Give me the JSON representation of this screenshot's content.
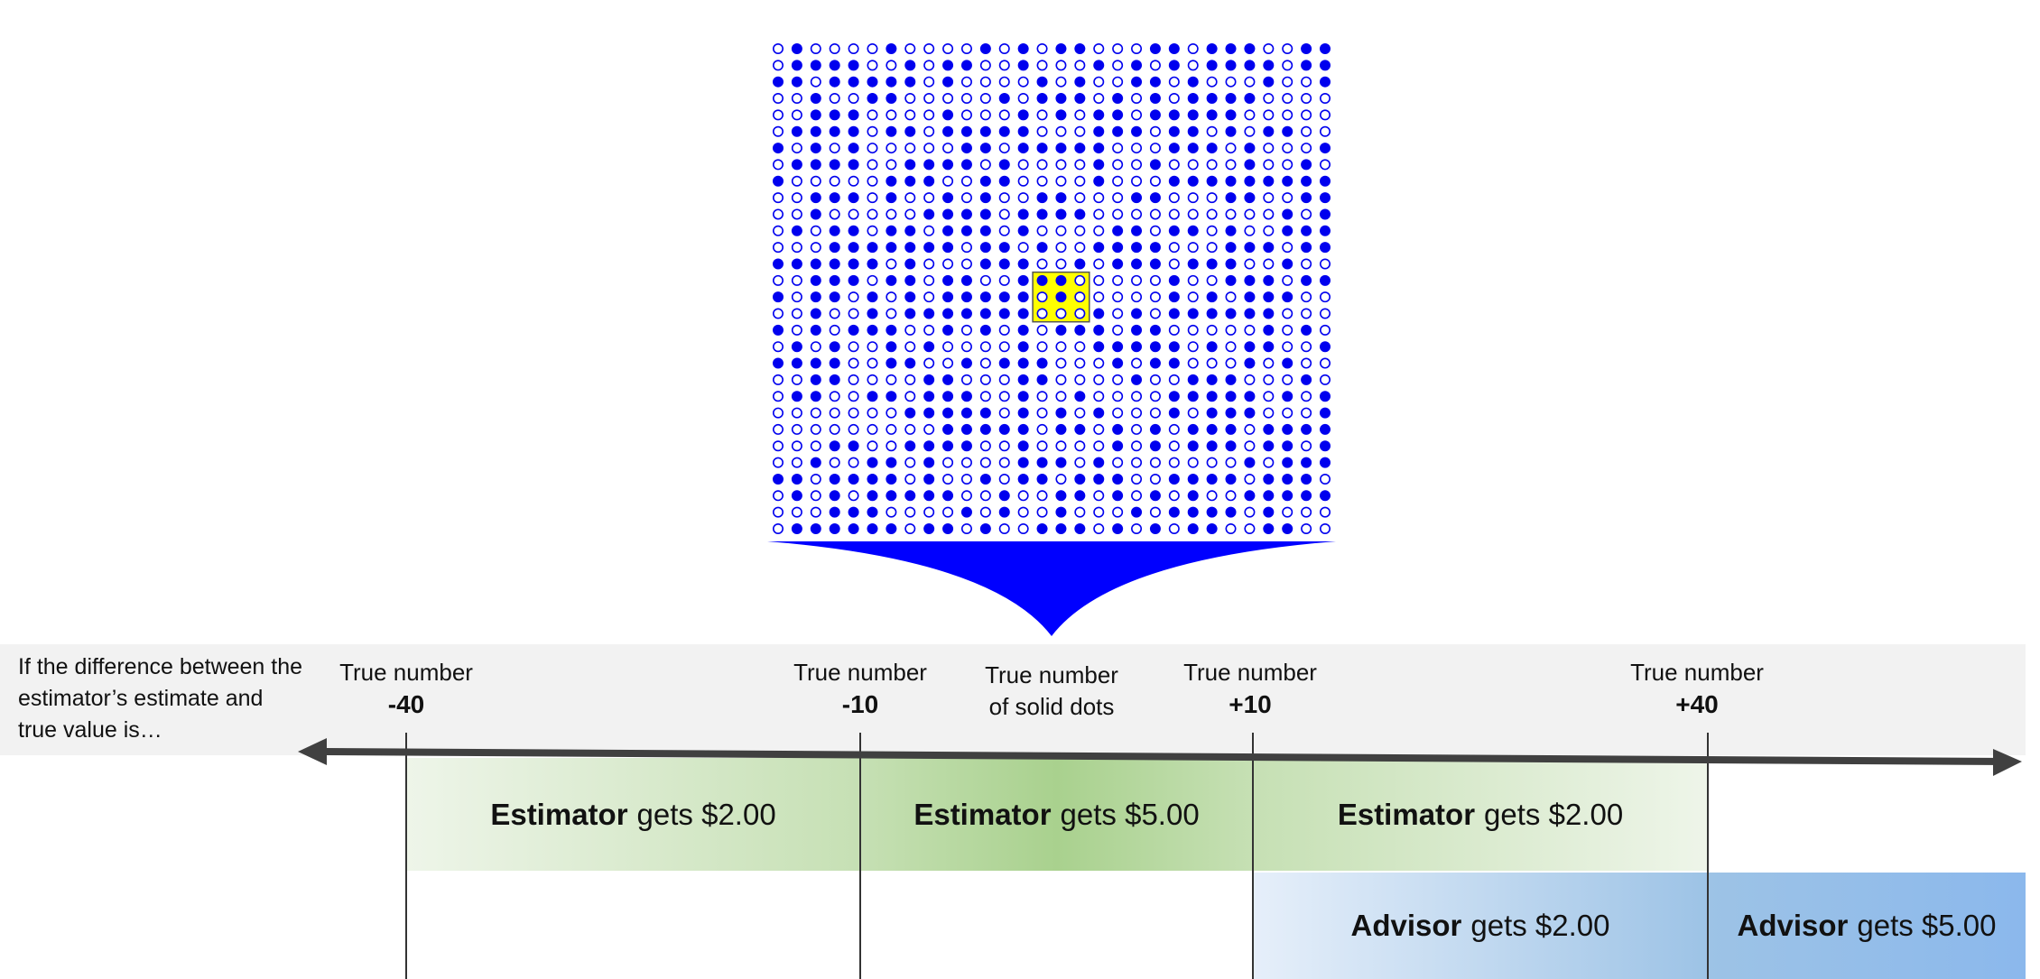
{
  "intro_text": "If the difference between the estimator’s estimate and true value is…",
  "ticks": [
    {
      "caption": "True number",
      "value": "-40"
    },
    {
      "caption": "True number",
      "value": "-10"
    },
    {
      "caption": "True number",
      "value": "+10"
    },
    {
      "caption": "True number",
      "value": "+40"
    }
  ],
  "center_label": {
    "line1": "True number",
    "line2": "of solid dots"
  },
  "zones": {
    "estimator_left": {
      "role": "Estimator",
      "text": "gets $2.00"
    },
    "estimator_middle": {
      "role": "Estimator",
      "text": "gets $5.00"
    },
    "estimator_right": {
      "role": "Estimator",
      "text": "gets $2.00"
    },
    "advisor_middle": {
      "role": "Advisor",
      "text": "gets $2.00"
    },
    "advisor_right": {
      "role": "Advisor",
      "text": "gets $5.00"
    }
  },
  "dot_grid": {
    "rows": 30,
    "cols": 30,
    "highlight": {
      "row_start": 14,
      "row_end": 16,
      "col_start": 14,
      "col_end": 16
    },
    "dot_color": "#0000ee",
    "highlight_color": "#ffff00"
  },
  "colors": {
    "arrow": "#404040",
    "funnel": "#0000ff",
    "estimator_green": "#a9d18e",
    "advisor_blue": "#8bb8ec"
  }
}
